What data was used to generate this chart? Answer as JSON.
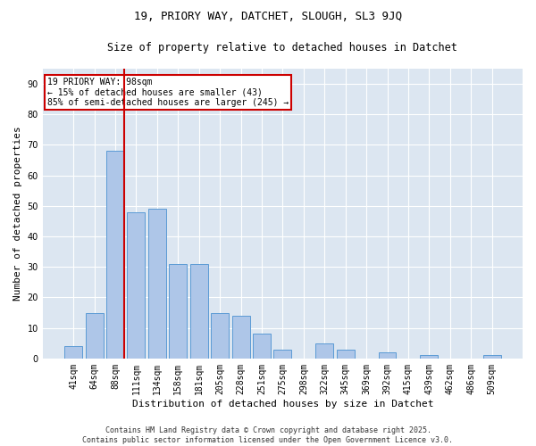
{
  "title1": "19, PRIORY WAY, DATCHET, SLOUGH, SL3 9JQ",
  "title2": "Size of property relative to detached houses in Datchet",
  "xlabel": "Distribution of detached houses by size in Datchet",
  "ylabel": "Number of detached properties",
  "categories": [
    "41sqm",
    "64sqm",
    "88sqm",
    "111sqm",
    "134sqm",
    "158sqm",
    "181sqm",
    "205sqm",
    "228sqm",
    "251sqm",
    "275sqm",
    "298sqm",
    "322sqm",
    "345sqm",
    "369sqm",
    "392sqm",
    "415sqm",
    "439sqm",
    "462sqm",
    "486sqm",
    "509sqm"
  ],
  "values": [
    4,
    15,
    68,
    48,
    49,
    31,
    31,
    15,
    14,
    8,
    3,
    0,
    5,
    3,
    0,
    2,
    0,
    1,
    0,
    0,
    1
  ],
  "bar_color": "#aec6e8",
  "bar_edge_color": "#5b9bd5",
  "background_color": "#dce6f1",
  "grid_color": "#ffffff",
  "vline_color": "#cc0000",
  "annotation_text": "19 PRIORY WAY: 98sqm\n← 15% of detached houses are smaller (43)\n85% of semi-detached houses are larger (245) →",
  "annotation_box_color": "#cc0000",
  "footer": "Contains HM Land Registry data © Crown copyright and database right 2025.\nContains public sector information licensed under the Open Government Licence v3.0.",
  "ylim": [
    0,
    95
  ],
  "yticks": [
    0,
    10,
    20,
    30,
    40,
    50,
    60,
    70,
    80,
    90
  ],
  "title_fontsize": 9,
  "subtitle_fontsize": 8.5,
  "tick_fontsize": 7,
  "ylabel_fontsize": 8,
  "xlabel_fontsize": 8,
  "annotation_fontsize": 7,
  "footer_fontsize": 6
}
